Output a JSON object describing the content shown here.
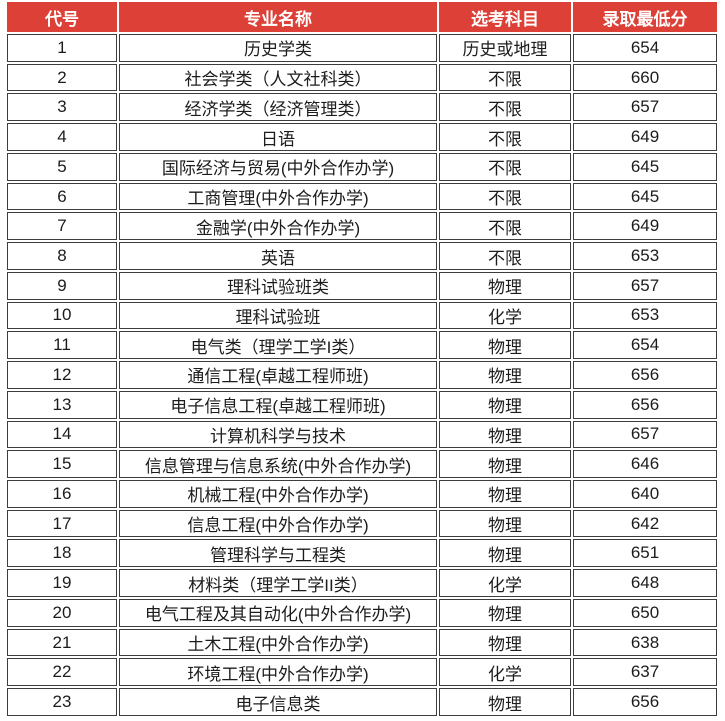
{
  "colors": {
    "header_bg": "#dc4037",
    "header_text": "#ffffff",
    "body_text": "#1c1c1c",
    "border": "#3d3d3d",
    "cell_bg": "#ffffff",
    "page_bg": "#ffffff"
  },
  "table": {
    "columns": [
      "代号",
      "专业名称",
      "选考科目",
      "录取最低分"
    ],
    "rows": [
      {
        "code": "1",
        "major": "历史学类",
        "subjects": "历史或地理",
        "score": "654"
      },
      {
        "code": "2",
        "major": "社会学类（人文社科类）",
        "subjects": "不限",
        "score": "660"
      },
      {
        "code": "3",
        "major": "经济学类（经济管理类）",
        "subjects": "不限",
        "score": "657"
      },
      {
        "code": "4",
        "major": "日语",
        "subjects": "不限",
        "score": "649"
      },
      {
        "code": "5",
        "major": "国际经济与贸易(中外合作办学)",
        "subjects": "不限",
        "score": "645"
      },
      {
        "code": "6",
        "major": "工商管理(中外合作办学)",
        "subjects": "不限",
        "score": "645"
      },
      {
        "code": "7",
        "major": "金融学(中外合作办学)",
        "subjects": "不限",
        "score": "649"
      },
      {
        "code": "8",
        "major": "英语",
        "subjects": "不限",
        "score": "653"
      },
      {
        "code": "9",
        "major": "理科试验班类",
        "subjects": "物理",
        "score": "657"
      },
      {
        "code": "10",
        "major": "理科试验班",
        "subjects": "化学",
        "score": "653"
      },
      {
        "code": "11",
        "major": "电气类（理学工学I类）",
        "subjects": "物理",
        "score": "654"
      },
      {
        "code": "12",
        "major": "通信工程(卓越工程师班)",
        "subjects": "物理",
        "score": "656"
      },
      {
        "code": "13",
        "major": "电子信息工程(卓越工程师班)",
        "subjects": "物理",
        "score": "656"
      },
      {
        "code": "14",
        "major": "计算机科学与技术",
        "subjects": "物理",
        "score": "657"
      },
      {
        "code": "15",
        "major": "信息管理与信息系统(中外合作办学)",
        "subjects": "物理",
        "score": "646"
      },
      {
        "code": "16",
        "major": "机械工程(中外合作办学)",
        "subjects": "物理",
        "score": "640"
      },
      {
        "code": "17",
        "major": "信息工程(中外合作办学)",
        "subjects": "物理",
        "score": "642"
      },
      {
        "code": "18",
        "major": "管理科学与工程类",
        "subjects": "物理",
        "score": "651"
      },
      {
        "code": "19",
        "major": "材料类（理学工学II类）",
        "subjects": "化学",
        "score": "648"
      },
      {
        "code": "20",
        "major": "电气工程及其自动化(中外合作办学)",
        "subjects": "物理",
        "score": "650"
      },
      {
        "code": "21",
        "major": "土木工程(中外合作办学)",
        "subjects": "物理",
        "score": "638"
      },
      {
        "code": "22",
        "major": "环境工程(中外合作办学)",
        "subjects": "化学",
        "score": "637"
      },
      {
        "code": "23",
        "major": "电子信息类",
        "subjects": "物理",
        "score": "656"
      }
    ]
  }
}
